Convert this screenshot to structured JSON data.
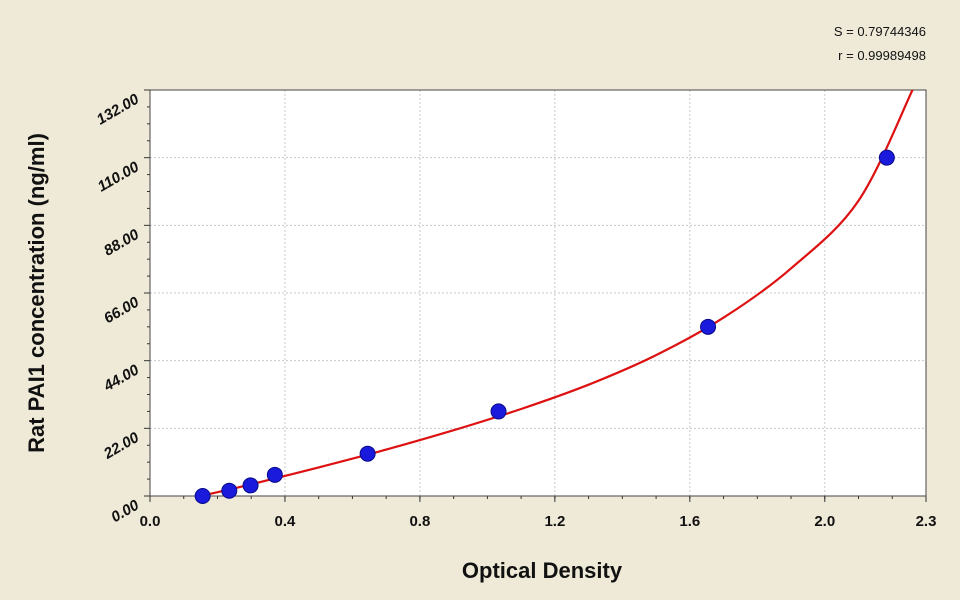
{
  "chart_data": {
    "type": "scatter",
    "xlabel": "Optical Density",
    "ylabel": "Rat PAI1 concentration (ng/ml)",
    "xlim": [
      0.0,
      2.3
    ],
    "ylim": [
      0.0,
      132.0
    ],
    "x_ticks": [
      0.0,
      0.4,
      0.8,
      1.2,
      1.6,
      2.0,
      2.3
    ],
    "x_tick_labels": [
      "0.0",
      "0.4",
      "0.8",
      "1.2",
      "1.6",
      "2.0",
      "2.3"
    ],
    "y_ticks": [
      0,
      22,
      44,
      66,
      88,
      110,
      132
    ],
    "y_tick_labels": [
      "0.00",
      "22.00",
      "44.00",
      "66.00",
      "88.00",
      "110.00",
      "132.00"
    ],
    "grid": true,
    "stats": {
      "s_label": "S = 0.79744346",
      "r_label": "r = 0.99989498"
    },
    "series": [
      {
        "type": "scatter",
        "x": [
          0.156,
          0.235,
          0.298,
          0.37,
          0.645,
          1.033,
          1.654,
          2.184
        ],
        "y": [
          0.0,
          1.72,
          3.44,
          6.88,
          13.75,
          27.5,
          55.0,
          110.0
        ]
      },
      {
        "type": "line",
        "x": [
          0.15,
          0.3,
          0.5,
          0.7,
          0.9,
          1.1,
          1.3,
          1.5,
          1.7,
          1.9,
          2.1,
          2.26
        ],
        "y": [
          0.0,
          3.8,
          9.3,
          15.1,
          21.4,
          28.3,
          36.2,
          45.8,
          58.0,
          74.0,
          96.0,
          132.0
        ]
      }
    ],
    "colors": {
      "point": "#1a1adc",
      "curve": "#dd1111",
      "plot_bg": "#ffffff",
      "grid": "#c8c8c8"
    }
  }
}
